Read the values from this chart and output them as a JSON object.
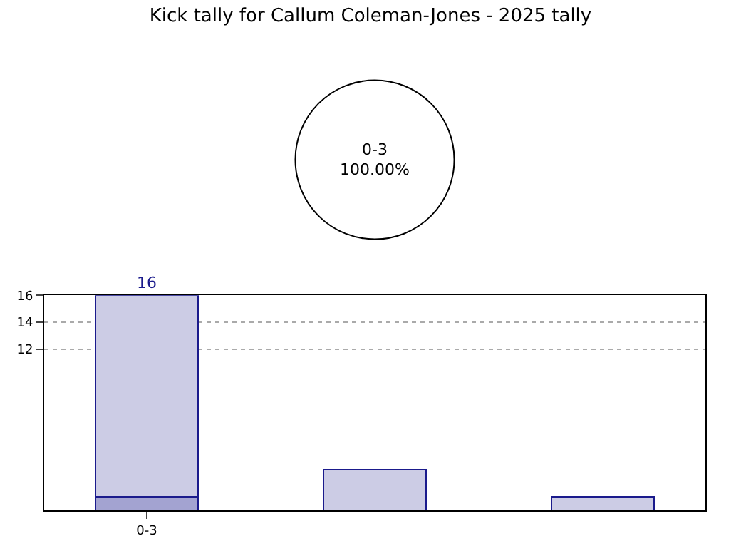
{
  "chart_data": [
    {
      "type": "pie",
      "title": "Kick tally for Callum Coleman-Jones - 2025 tally",
      "categories": [
        "0-3"
      ],
      "values": [
        100
      ],
      "colors": [
        "#ffffff"
      ],
      "value_labels": [
        "100.00%"
      ]
    },
    {
      "type": "bar",
      "stacked": true,
      "categories": [
        "0-3",
        null,
        null
      ],
      "series": [
        {
          "color": "#a3a3d1",
          "values": [
            1,
            null,
            null
          ]
        },
        {
          "color": "#cccce5",
          "values": [
            15,
            3,
            1
          ]
        }
      ],
      "totals": [
        "16",
        null,
        null
      ],
      "ylim": [
        0,
        16
      ],
      "yticks": [
        12,
        14,
        16
      ],
      "grid": true
    }
  ]
}
